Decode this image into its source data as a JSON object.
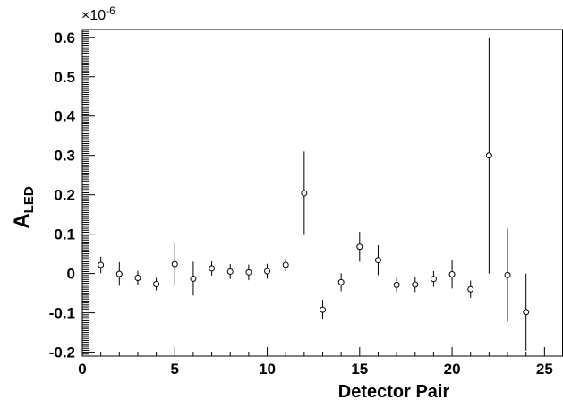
{
  "chart_data": {
    "type": "scatter",
    "title": "",
    "xlabel": "Detector Pair",
    "ylabel": {
      "main": "A",
      "sub": "LED"
    },
    "y_multiplier": {
      "base": "×10",
      "exponent": "-6"
    },
    "xlim": [
      0,
      26
    ],
    "ylim": [
      -0.21,
      0.62
    ],
    "x_ticks": [
      0,
      5,
      10,
      15,
      20,
      25
    ],
    "x_tick_labels": [
      "0",
      "5",
      "10",
      "15",
      "20",
      "25"
    ],
    "y_ticks": [
      -0.2,
      -0.1,
      0,
      0.1,
      0.2,
      0.3,
      0.4,
      0.5,
      0.6
    ],
    "y_tick_labels": [
      "-0.2",
      "-0.1",
      "0",
      "0.1",
      "0.2",
      "0.3",
      "0.4",
      "0.5",
      "0.6"
    ],
    "grid": false,
    "legend": "none",
    "series": [
      {
        "marker": "open-circle",
        "x": [
          1,
          2,
          3,
          4,
          5,
          6,
          7,
          8,
          9,
          10,
          11,
          12,
          13,
          14,
          15,
          16,
          17,
          18,
          19,
          20,
          21,
          22,
          23,
          24
        ],
        "y": [
          0.022,
          -0.001,
          -0.011,
          -0.027,
          0.024,
          -0.013,
          0.013,
          0.005,
          0.003,
          0.006,
          0.022,
          0.204,
          -0.092,
          -0.022,
          0.068,
          0.034,
          -0.029,
          -0.028,
          -0.014,
          -0.002,
          -0.04,
          0.3,
          -0.004,
          -0.098
        ],
        "yerr": [
          0.021,
          0.03,
          0.018,
          0.016,
          0.053,
          0.043,
          0.018,
          0.019,
          0.02,
          0.019,
          0.016,
          0.106,
          0.025,
          0.023,
          0.038,
          0.038,
          0.018,
          0.019,
          0.02,
          0.036,
          0.022,
          0.3,
          0.118,
          0.098
        ]
      }
    ]
  }
}
